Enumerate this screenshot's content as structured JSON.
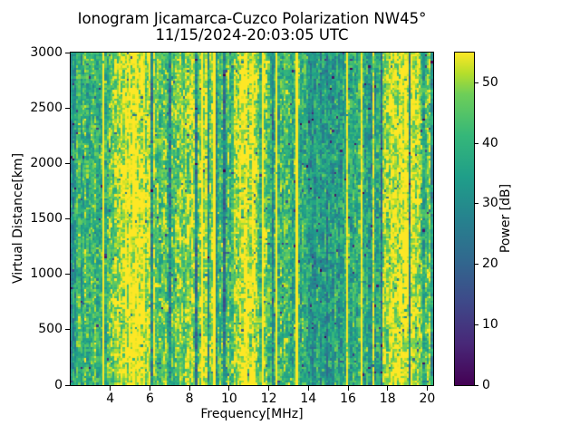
{
  "figure": {
    "title": "Ionogram Jicamarca-Cuzco Polarization NW45°",
    "subtitle": "11/15/2024-20:03:05 UTC"
  },
  "chart_data": {
    "type": "heatmap",
    "title": "Ionogram Jicamarca-Cuzco Polarization NW45°",
    "subtitle": "11/15/2024-20:03:05 UTC",
    "xlabel": "Frequency[MHz]",
    "ylabel": "Virtual Distance[km]",
    "colorbar_label": "Power [dB]",
    "xlim": [
      2.0,
      20.3
    ],
    "ylim": [
      0,
      3000
    ],
    "clim": [
      0,
      55
    ],
    "x_ticks": [
      4,
      6,
      8,
      10,
      12,
      14,
      16,
      18,
      20
    ],
    "y_ticks": [
      0,
      500,
      1000,
      1500,
      2000,
      2500,
      3000
    ],
    "colorbar_ticks": [
      0,
      10,
      20,
      30,
      40,
      50
    ],
    "grid": false,
    "colormap": "viridis",
    "colormap_stops": [
      {
        "pos": 0.0,
        "color": "#440154"
      },
      {
        "pos": 0.125,
        "color": "#482878"
      },
      {
        "pos": 0.25,
        "color": "#3e4989"
      },
      {
        "pos": 0.375,
        "color": "#31688e"
      },
      {
        "pos": 0.5,
        "color": "#26828e"
      },
      {
        "pos": 0.625,
        "color": "#1f9e89"
      },
      {
        "pos": 0.75,
        "color": "#35b779"
      },
      {
        "pos": 0.875,
        "color": "#6ece58"
      },
      {
        "pos": 0.9375,
        "color": "#b5de2b"
      },
      {
        "pos": 1.0,
        "color": "#fde725"
      }
    ],
    "frequency_power_profile": {
      "freq_mhz": [
        2.0,
        2.4,
        2.8,
        3.2,
        3.6,
        4.0,
        4.4,
        4.8,
        5.2,
        5.6,
        6.0,
        6.4,
        6.8,
        7.2,
        7.6,
        8.0,
        8.4,
        8.8,
        9.2,
        9.6,
        10.0,
        10.4,
        10.8,
        11.2,
        11.6,
        12.0,
        12.4,
        12.8,
        13.2,
        13.6,
        14.0,
        14.4,
        14.8,
        15.2,
        15.6,
        16.0,
        16.4,
        16.8,
        17.2,
        17.6,
        18.0,
        18.4,
        18.8,
        19.2,
        19.6,
        20.0,
        20.3
      ],
      "mean_power_db": [
        33,
        40,
        42,
        41,
        42,
        45,
        52,
        55,
        56,
        55,
        52,
        48,
        45,
        46,
        45,
        46,
        50,
        52,
        50,
        43,
        42,
        52,
        55,
        54,
        49,
        44,
        42,
        42,
        41,
        39,
        36,
        34,
        33,
        33,
        36,
        42,
        38,
        36,
        35,
        40,
        50,
        56,
        56,
        54,
        50,
        46,
        48
      ]
    },
    "texture": {
      "seed": 1234,
      "columns": 180,
      "rows": 150,
      "cell_noise_db": 10,
      "column_noise_db": 9,
      "streak_noise_db": 18,
      "bright_line_prob": 0.05,
      "dark_line_prob": 0.05,
      "dark_speck_prob": 0.012
    }
  },
  "colors": {
    "background": "#ffffff",
    "text": "#000000",
    "axis": "#000000"
  }
}
